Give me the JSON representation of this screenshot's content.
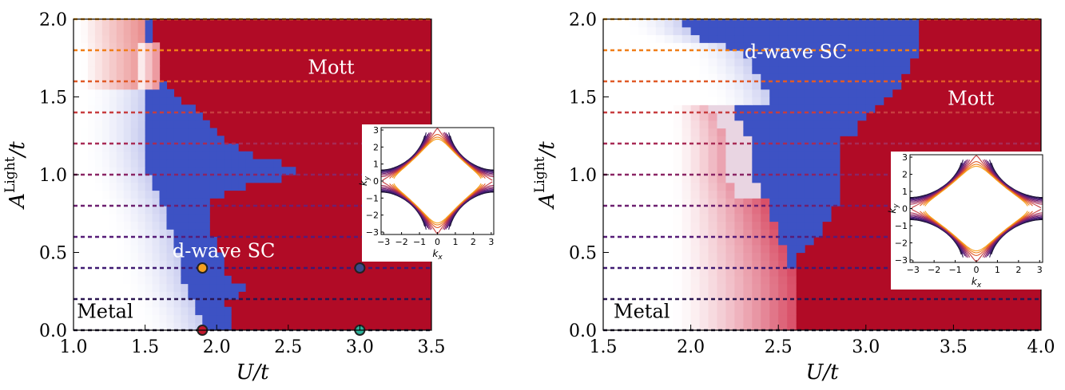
{
  "chart_data": [
    {
      "type": "heatmap",
      "panel": "left",
      "xlabel": "U/t",
      "ylabel": "A^Light/t",
      "xlim": [
        1.0,
        3.5
      ],
      "ylim": [
        0.0,
        2.0
      ],
      "xticks": [
        "1.0",
        "1.5",
        "2.0",
        "2.5",
        "3.0",
        "3.5"
      ],
      "yticks": [
        "0.0",
        "0.5",
        "1.0",
        "1.5",
        "2.0"
      ],
      "colors": {
        "metal": "#ffffff",
        "sc": "#3d52c4",
        "mott": "#b10b26"
      },
      "regions": [
        {
          "label": "Mott",
          "x": 2.8,
          "y": 1.65,
          "color": "#ffffff"
        },
        {
          "label": "d-wave SC",
          "x": 2.05,
          "y": 0.47,
          "color": "#ffffff"
        },
        {
          "label": "Metal",
          "x": 1.22,
          "y": 0.08,
          "color": "#000000"
        }
      ],
      "hlines": [
        {
          "y": 0.0,
          "color": "#1a1230"
        },
        {
          "y": 0.2,
          "color": "#2a1650"
        },
        {
          "y": 0.4,
          "color": "#3f1a72"
        },
        {
          "y": 0.6,
          "color": "#561c78"
        },
        {
          "y": 0.8,
          "color": "#6d2070"
        },
        {
          "y": 1.0,
          "color": "#8a2565"
        },
        {
          "y": 1.2,
          "color": "#a82b55"
        },
        {
          "y": 1.4,
          "color": "#c73d3f"
        },
        {
          "y": 1.6,
          "color": "#e05a27"
        },
        {
          "y": 1.8,
          "color": "#f07e18"
        },
        {
          "y": 2.0,
          "color": "#f5a01e"
        }
      ],
      "markers": [
        {
          "x": 1.9,
          "y": 0.0,
          "color": "#c0172c"
        },
        {
          "x": 1.9,
          "y": 0.4,
          "color": "#f5a01e"
        },
        {
          "x": 3.0,
          "y": 0.0,
          "color": "#2bb39a"
        },
        {
          "x": 3.0,
          "y": 0.4,
          "color": "#3b4a8a"
        }
      ],
      "boundaries": {
        "metal_to_sc": [
          [
            0.0,
            1.9
          ],
          [
            0.1,
            1.87
          ],
          [
            0.2,
            1.82
          ],
          [
            0.3,
            1.78
          ],
          [
            0.4,
            1.75
          ],
          [
            0.5,
            1.72
          ],
          [
            0.6,
            1.7
          ],
          [
            0.7,
            1.66
          ],
          [
            0.8,
            1.62
          ],
          [
            0.9,
            1.57
          ],
          [
            1.0,
            1.53
          ],
          [
            1.1,
            1.5
          ],
          [
            1.2,
            1.48
          ],
          [
            1.3,
            1.48
          ],
          [
            1.4,
            1.49
          ],
          [
            1.5,
            1.5
          ],
          [
            1.6,
            1.52
          ],
          [
            1.7,
            1.52
          ],
          [
            1.8,
            1.52
          ],
          [
            1.9,
            1.5
          ],
          [
            2.0,
            1.5
          ]
        ],
        "sc_to_mott": [
          [
            0.0,
            2.1
          ],
          [
            0.1,
            2.08
          ],
          [
            0.2,
            2.07
          ],
          [
            0.25,
            2.25
          ],
          [
            0.3,
            2.15
          ],
          [
            0.4,
            2.05
          ],
          [
            0.5,
            2.02
          ],
          [
            0.6,
            1.98
          ],
          [
            0.7,
            1.95
          ],
          [
            0.8,
            1.93
          ],
          [
            0.9,
            2.1
          ],
          [
            1.0,
            2.55
          ],
          [
            1.05,
            2.6
          ],
          [
            1.1,
            2.3
          ],
          [
            1.2,
            2.1
          ],
          [
            1.3,
            1.98
          ],
          [
            1.4,
            1.88
          ],
          [
            1.5,
            1.7
          ],
          [
            1.6,
            1.62
          ],
          [
            1.7,
            1.6
          ],
          [
            1.8,
            1.57
          ],
          [
            1.9,
            1.55
          ],
          [
            2.0,
            1.55
          ]
        ]
      },
      "inset": {
        "xlabel": "k_x",
        "ylabel": "k_y",
        "xticks": [
          "−3",
          "−2",
          "−1",
          "0",
          "1",
          "2",
          "3"
        ],
        "yticks": [
          "3",
          "2",
          "1",
          "0",
          "−1",
          "−2",
          "−3"
        ],
        "curves": 11,
        "colors": [
          "#1a1230",
          "#2a1650",
          "#3f1a72",
          "#561c78",
          "#6d2070",
          "#8a2565",
          "#a82b55",
          "#c73d3f",
          "#e05a27",
          "#f07e18",
          "#f5a01e"
        ]
      }
    },
    {
      "type": "heatmap",
      "panel": "right",
      "xlabel": "U/t",
      "ylabel": "A^Light/t",
      "xlim": [
        1.5,
        4.0
      ],
      "ylim": [
        0.0,
        2.0
      ],
      "xticks": [
        "1.5",
        "2.0",
        "2.5",
        "3.0",
        "3.5",
        "4.0"
      ],
      "yticks": [
        "0.0",
        "0.5",
        "1.0",
        "1.5",
        "2.0"
      ],
      "colors": {
        "metal": "#ffffff",
        "sc": "#3d52c4",
        "mott": "#b10b26"
      },
      "regions": [
        {
          "label": "d-wave SC",
          "x": 2.6,
          "y": 1.75,
          "color": "#ffffff"
        },
        {
          "label": "Mott",
          "x": 3.6,
          "y": 1.45,
          "color": "#ffffff"
        },
        {
          "label": "Metal",
          "x": 1.72,
          "y": 0.08,
          "color": "#000000"
        }
      ],
      "hlines": [
        {
          "y": 0.0,
          "color": "#1a1230"
        },
        {
          "y": 0.2,
          "color": "#2a1650"
        },
        {
          "y": 0.4,
          "color": "#3f1a72"
        },
        {
          "y": 0.6,
          "color": "#561c78"
        },
        {
          "y": 0.8,
          "color": "#6d2070"
        },
        {
          "y": 1.0,
          "color": "#8a2565"
        },
        {
          "y": 1.2,
          "color": "#a82b55"
        },
        {
          "y": 1.4,
          "color": "#c73d3f"
        },
        {
          "y": 1.6,
          "color": "#e05a27"
        },
        {
          "y": 1.8,
          "color": "#f07e18"
        },
        {
          "y": 2.0,
          "color": "#f5a01e"
        }
      ],
      "boundaries": {
        "metal_to_sc": [
          [
            1.5,
            2.45
          ],
          [
            1.6,
            2.4
          ],
          [
            1.7,
            2.35
          ],
          [
            1.8,
            2.3
          ],
          [
            1.9,
            2.0
          ],
          [
            2.0,
            1.95
          ],
          [
            2.1,
            2.2
          ],
          [
            2.2,
            2.25
          ],
          [
            2.3,
            1.95
          ],
          [
            2.4,
            1.88
          ],
          [
            2.5,
            1.85
          ],
          [
            2.6,
            1.83
          ],
          [
            2.7,
            1.85
          ],
          [
            2.8,
            1.9
          ],
          [
            2.9,
            1.93
          ],
          [
            3.0,
            1.95
          ]
        ],
        "sc_to_mott": [
          [
            0.0,
            2.6
          ],
          [
            0.1,
            2.6
          ],
          [
            0.2,
            2.6
          ],
          [
            0.3,
            2.62
          ],
          [
            0.4,
            2.58
          ],
          [
            0.5,
            2.6
          ],
          [
            0.6,
            2.72
          ],
          [
            0.7,
            2.78
          ],
          [
            0.8,
            2.83
          ],
          [
            0.9,
            2.83
          ],
          [
            1.0,
            2.83
          ],
          [
            1.1,
            2.85
          ],
          [
            1.2,
            2.85
          ],
          [
            1.3,
            2.95
          ],
          [
            1.4,
            3.05
          ],
          [
            1.5,
            3.12
          ],
          [
            1.6,
            3.2
          ],
          [
            1.7,
            3.25
          ],
          [
            1.8,
            3.3
          ],
          [
            1.9,
            3.3
          ],
          [
            2.0,
            3.3
          ]
        ],
        "pink_edge": [
          [
            0.0,
            2.6
          ],
          [
            0.3,
            2.6
          ],
          [
            0.5,
            2.55
          ],
          [
            0.7,
            2.48
          ],
          [
            0.8,
            2.45
          ],
          [
            1.0,
            2.35
          ],
          [
            1.2,
            2.35
          ],
          [
            1.35,
            2.3
          ],
          [
            1.4,
            2.25
          ]
        ]
      },
      "inset": {
        "xlabel": "k_x",
        "ylabel": "k_y",
        "xticks": [
          "−3",
          "−2",
          "−1",
          "0",
          "1",
          "2",
          "3"
        ],
        "yticks": [
          "3",
          "2",
          "1",
          "0",
          "−1",
          "−2",
          "−3"
        ],
        "curves": 11,
        "colors": [
          "#1a1230",
          "#2a1650",
          "#3f1a72",
          "#561c78",
          "#6d2070",
          "#8a2565",
          "#a82b55",
          "#c73d3f",
          "#e05a27",
          "#f07e18",
          "#f5a01e"
        ]
      }
    }
  ]
}
